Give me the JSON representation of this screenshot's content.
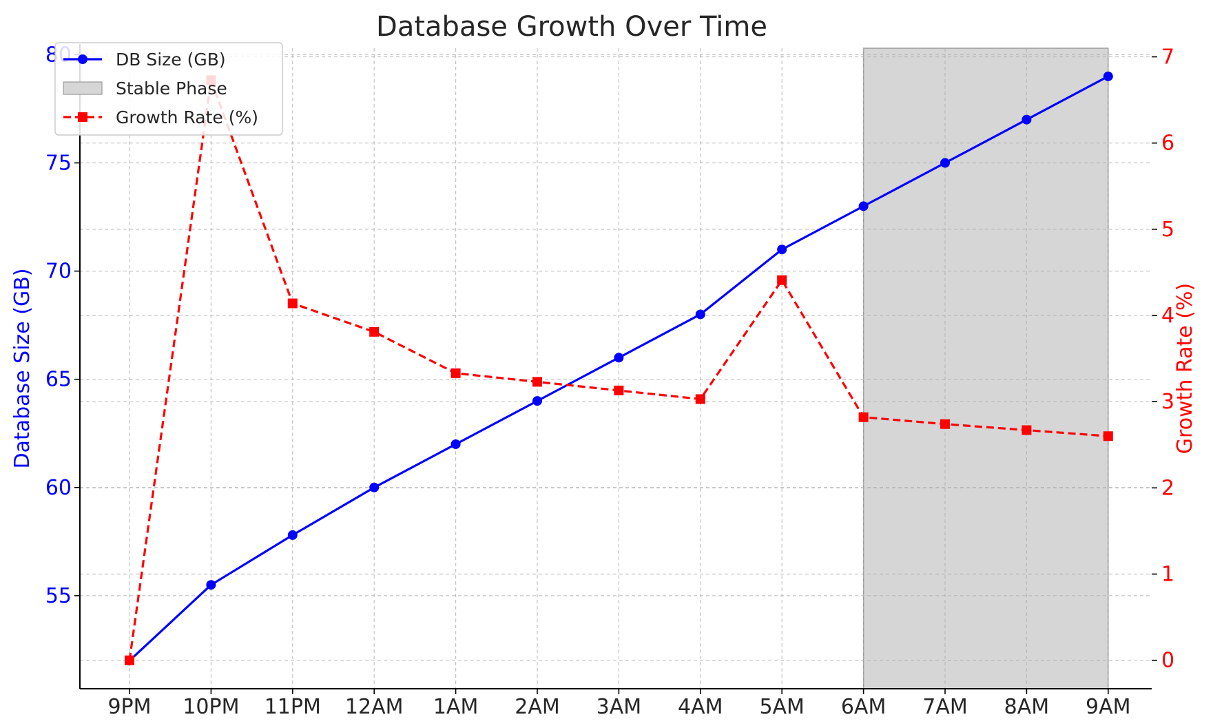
{
  "chart_data": {
    "type": "line",
    "title": "Database Growth Over Time",
    "categories": [
      "9PM",
      "10PM",
      "11PM",
      "12AM",
      "1AM",
      "2AM",
      "3AM",
      "4AM",
      "5AM",
      "6AM",
      "7AM",
      "8AM",
      "9AM"
    ],
    "y_left": {
      "label": "Database Size (GB)",
      "range": [
        50.7,
        80.3
      ],
      "ticks": [
        55,
        60,
        65,
        70,
        75,
        80
      ],
      "color": "#0000ff"
    },
    "y_right": {
      "label": "Growth Rate (%)",
      "range": [
        -0.33,
        7.1
      ],
      "ticks": [
        0,
        1,
        2,
        3,
        4,
        5,
        6,
        7
      ],
      "color": "#ff0000"
    },
    "series": [
      {
        "name": "DB Size (GB)",
        "axis": "left",
        "color": "#0000ff",
        "style": "solid",
        "marker": "circle",
        "values": [
          52.0,
          55.5,
          57.8,
          60.0,
          62.0,
          64.0,
          66.0,
          68.0,
          71.0,
          73.0,
          75.0,
          77.0,
          79.0
        ]
      },
      {
        "name": "Growth Rate (%)",
        "axis": "right",
        "color": "#ff0000",
        "style": "dashed",
        "marker": "square",
        "values": [
          0.0,
          6.73,
          4.14,
          3.81,
          3.33,
          3.23,
          3.13,
          3.03,
          4.41,
          2.82,
          2.74,
          2.67,
          2.6
        ]
      }
    ],
    "shaded_region": {
      "name": "Stable Phase",
      "from": "6AM",
      "to": "9AM",
      "color": "#d6d6d6"
    },
    "legend": {
      "placement": "top-left",
      "entries": [
        "DB Size (GB)",
        "Stable Phase",
        "Growth Rate (%)"
      ]
    },
    "grid": true
  }
}
